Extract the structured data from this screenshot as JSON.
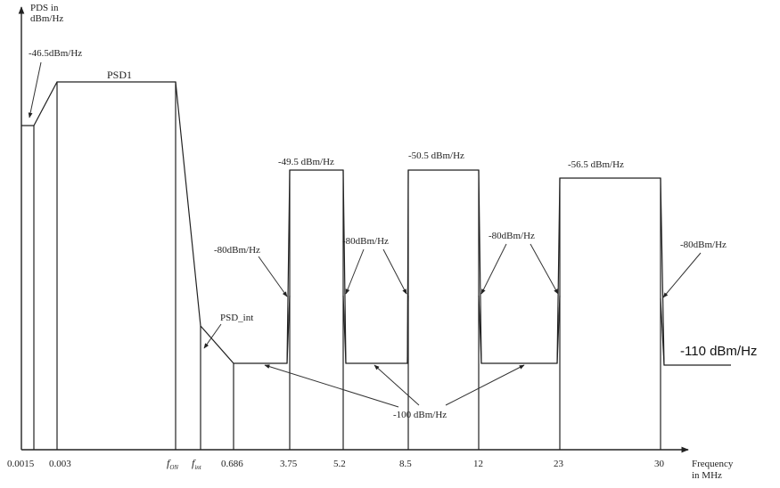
{
  "axes": {
    "y_label_line1": "PDS in",
    "y_label_line2": "dBm/Hz",
    "x_label_line1": "Frequency",
    "x_label_line2": "in MHz"
  },
  "x_ticks": [
    "0.0015",
    "0.003",
    "f",
    "f",
    "0.686",
    "3.75",
    "5.2",
    "8.5",
    "12",
    "23",
    "30"
  ],
  "x_tick_subscripts": {
    "f_on": "ON",
    "f_int": "int"
  },
  "annotations": {
    "psd_start": "-46.5dBm/Hz",
    "psd1": "PSD1",
    "psd_int": "PSD_int",
    "band1_level": "-49.5 dBm/Hz",
    "band2_level": "-50.5 dBm/Hz",
    "band3_level": "-56.5 dBm/Hz",
    "edge_label_1": "-80dBm/Hz",
    "edge_label_2": "-80dBm/Hz",
    "edge_label_3": "-80dBm/Hz",
    "edge_label_4": "-80dBm/Hz",
    "floor_label": "-100 dBm/Hz",
    "out_of_band": "-110 dBm/Hz"
  }
}
